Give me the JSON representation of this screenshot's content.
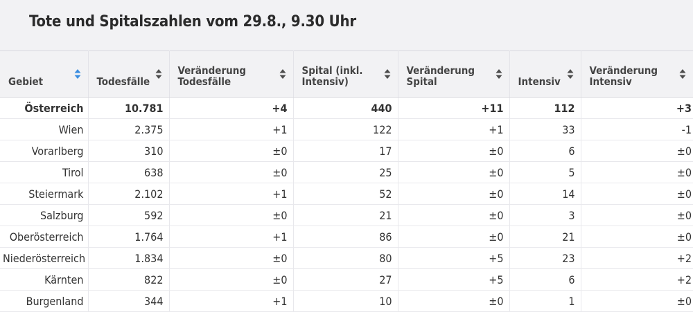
{
  "title": "Tote und Spitalszahlen vom 29.8., 9.30 Uhr",
  "columns": [
    {
      "label": "Gebiet",
      "sort": "active"
    },
    {
      "label": "Todesfälle",
      "sort": "none"
    },
    {
      "label": "Veränderung Todesfälle",
      "sort": "none"
    },
    {
      "label": "Spital (inkl. Intensiv)",
      "sort": "none"
    },
    {
      "label": "Veränderung Spital",
      "sort": "none"
    },
    {
      "label": "Intensiv",
      "sort": "none"
    },
    {
      "label": "Veränderung Intensiv",
      "sort": "none"
    }
  ],
  "rows": [
    {
      "region": "Österreich",
      "deaths": "10.781",
      "deaths_change": "+4",
      "hospital": "440",
      "hospital_change": "+11",
      "icu": "112",
      "icu_change": "+3",
      "total": true
    },
    {
      "region": "Wien",
      "deaths": "2.375",
      "deaths_change": "+1",
      "hospital": "122",
      "hospital_change": "+1",
      "icu": "33",
      "icu_change": "-1"
    },
    {
      "region": "Vorarlberg",
      "deaths": "310",
      "deaths_change": "±0",
      "hospital": "17",
      "hospital_change": "±0",
      "icu": "6",
      "icu_change": "±0"
    },
    {
      "region": "Tirol",
      "deaths": "638",
      "deaths_change": "±0",
      "hospital": "25",
      "hospital_change": "±0",
      "icu": "5",
      "icu_change": "±0"
    },
    {
      "region": "Steiermark",
      "deaths": "2.102",
      "deaths_change": "+1",
      "hospital": "52",
      "hospital_change": "±0",
      "icu": "14",
      "icu_change": "±0"
    },
    {
      "region": "Salzburg",
      "deaths": "592",
      "deaths_change": "±0",
      "hospital": "21",
      "hospital_change": "±0",
      "icu": "3",
      "icu_change": "±0"
    },
    {
      "region": "Oberösterreich",
      "deaths": "1.764",
      "deaths_change": "+1",
      "hospital": "86",
      "hospital_change": "±0",
      "icu": "21",
      "icu_change": "±0"
    },
    {
      "region": "Niederösterreich",
      "deaths": "1.834",
      "deaths_change": "±0",
      "hospital": "80",
      "hospital_change": "+5",
      "icu": "23",
      "icu_change": "+2"
    },
    {
      "region": "Kärnten",
      "deaths": "822",
      "deaths_change": "±0",
      "hospital": "27",
      "hospital_change": "+5",
      "icu": "6",
      "icu_change": "+2"
    },
    {
      "region": "Burgenland",
      "deaths": "344",
      "deaths_change": "+1",
      "hospital": "10",
      "hospital_change": "±0",
      "icu": "1",
      "icu_change": "±0"
    }
  ],
  "colors": {
    "sort_active": "#3a8de0",
    "sort_inactive": "#4d4d4d"
  }
}
